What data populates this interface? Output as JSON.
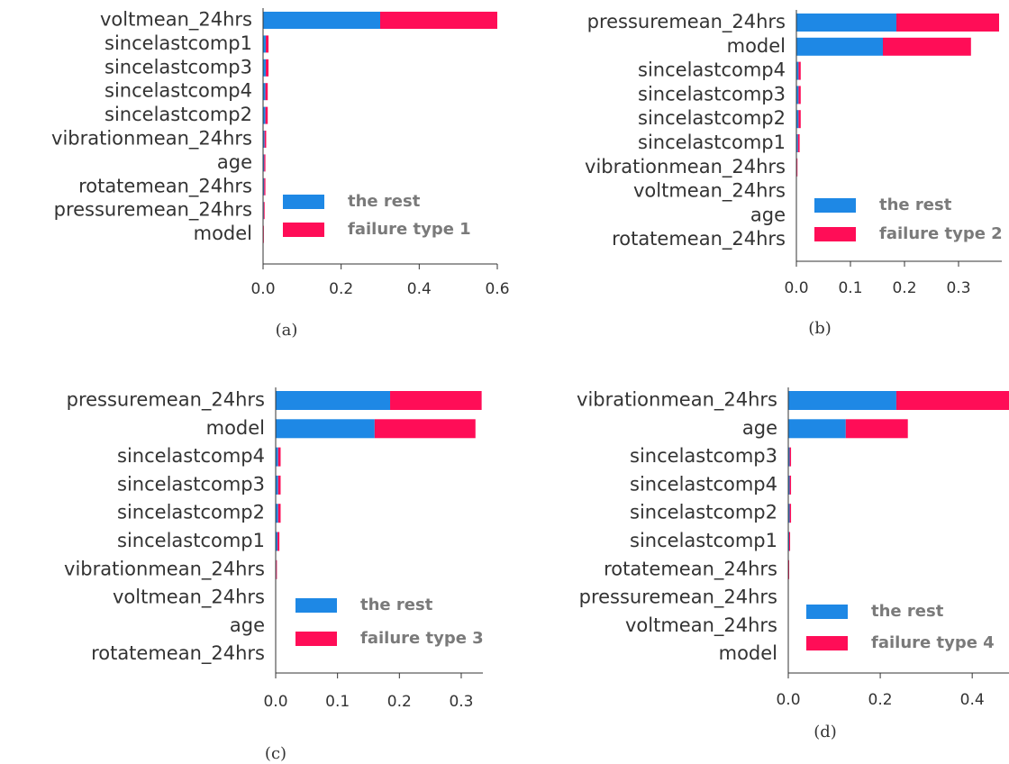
{
  "colors": {
    "rest": "#1E88E5",
    "failure": "#FF0D57",
    "axis": "#333333",
    "legend_text": "#7a7a7a"
  },
  "chart_data": [
    {
      "type": "bar",
      "stacked": true,
      "orientation": "horizontal",
      "caption": "(a)",
      "categories": [
        "voltmean_24hrs",
        "sincelastcomp1",
        "sincelastcomp3",
        "sincelastcomp4",
        "sincelastcomp2",
        "vibrationmean_24hrs",
        "age",
        "rotatemean_24hrs",
        "pressuremean_24hrs",
        "model"
      ],
      "series": [
        {
          "name": "the rest",
          "values": [
            0.3,
            0.007,
            0.007,
            0.006,
            0.006,
            0.004,
            0.003,
            0.003,
            0.002,
            0.001
          ]
        },
        {
          "name": "failure type 1",
          "values": [
            0.3,
            0.007,
            0.007,
            0.006,
            0.006,
            0.004,
            0.003,
            0.003,
            0.002,
            0.001
          ]
        }
      ],
      "xticks": [
        "0.0",
        "0.2",
        "0.4",
        "0.6"
      ],
      "xlim": [
        0,
        0.6
      ]
    },
    {
      "type": "bar",
      "stacked": true,
      "orientation": "horizontal",
      "caption": "(b)",
      "categories": [
        "pressuremean_24hrs",
        "model",
        "sincelastcomp4",
        "sincelastcomp3",
        "sincelastcomp2",
        "sincelastcomp1",
        "vibrationmean_24hrs",
        "voltmean_24hrs",
        "age",
        "rotatemean_24hrs"
      ],
      "series": [
        {
          "name": "the rest",
          "values": [
            0.185,
            0.16,
            0.004,
            0.004,
            0.004,
            0.003,
            0.001,
            0,
            0,
            0
          ]
        },
        {
          "name": "failure type 2",
          "values": [
            0.19,
            0.163,
            0.004,
            0.004,
            0.004,
            0.003,
            0.001,
            0,
            0,
            0
          ]
        }
      ],
      "xticks": [
        "0.0",
        "0.1",
        "0.2",
        "0.3"
      ],
      "xlim": [
        0,
        0.38
      ]
    },
    {
      "type": "bar",
      "stacked": true,
      "orientation": "horizontal",
      "caption": "(c)",
      "categories": [
        "pressuremean_24hrs",
        "model",
        "sincelastcomp4",
        "sincelastcomp3",
        "sincelastcomp2",
        "sincelastcomp1",
        "vibrationmean_24hrs",
        "voltmean_24hrs",
        "age",
        "rotatemean_24hrs"
      ],
      "series": [
        {
          "name": "the rest",
          "values": [
            0.185,
            0.16,
            0.004,
            0.004,
            0.004,
            0.003,
            0.001,
            0,
            0,
            0
          ]
        },
        {
          "name": "failure type 3",
          "values": [
            0.148,
            0.163,
            0.004,
            0.004,
            0.004,
            0.003,
            0.001,
            0,
            0,
            0
          ]
        }
      ],
      "xticks": [
        "0.0",
        "0.1",
        "0.2",
        "0.3"
      ],
      "xlim": [
        0,
        0.335
      ]
    },
    {
      "type": "bar",
      "stacked": true,
      "orientation": "horizontal",
      "caption": "(d)",
      "categories": [
        "vibrationmean_24hrs",
        "age",
        "sincelastcomp3",
        "sincelastcomp4",
        "sincelastcomp2",
        "sincelastcomp1",
        "rotatemean_24hrs",
        "pressuremean_24hrs",
        "voltmean_24hrs",
        "model"
      ],
      "series": [
        {
          "name": "the rest",
          "values": [
            0.235,
            0.125,
            0.003,
            0.003,
            0.003,
            0.002,
            0.001,
            0,
            0,
            0
          ]
        },
        {
          "name": "failure type 4",
          "values": [
            0.245,
            0.135,
            0.003,
            0.003,
            0.003,
            0.002,
            0.001,
            0,
            0,
            0
          ]
        }
      ],
      "xticks": [
        "0.0",
        "0.2",
        "0.4"
      ],
      "xlim": [
        0,
        0.48
      ]
    }
  ]
}
